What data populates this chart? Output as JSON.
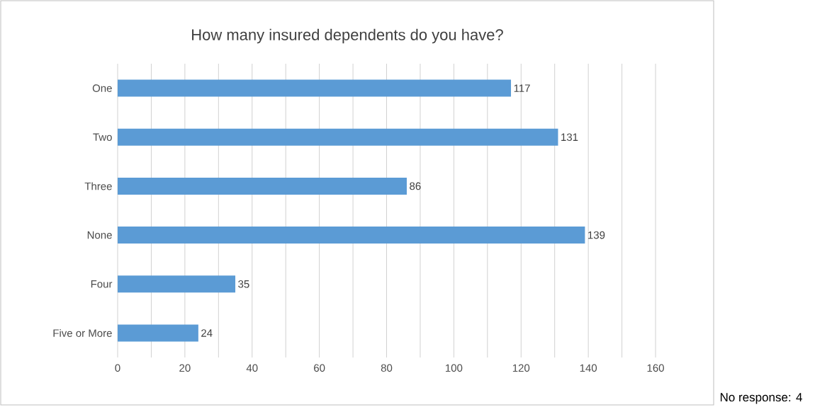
{
  "chart_data": {
    "type": "bar",
    "orientation": "horizontal",
    "title": "How many insured dependents do you have?",
    "categories": [
      "One",
      "Two",
      "Three",
      "None",
      "Four",
      "Five or More"
    ],
    "values": [
      117,
      131,
      86,
      139,
      35,
      24
    ],
    "color": "#5b9bd5",
    "data_labels": true,
    "grid": "x",
    "xlim": [
      0,
      160
    ],
    "xticks": [
      0,
      {
        "value": 10,
        "label": null
      },
      20,
      {
        "value": 30,
        "label": null
      },
      40,
      {
        "value": 50,
        "label": null
      },
      60,
      {
        "value": 70,
        "label": null
      },
      80,
      {
        "value": 90,
        "label": null
      },
      100,
      {
        "value": 110,
        "label": null
      },
      120,
      {
        "value": 130,
        "label": null
      },
      140,
      {
        "value": 150,
        "label": null
      },
      160
    ],
    "annotations": [
      "No response: 4"
    ]
  }
}
